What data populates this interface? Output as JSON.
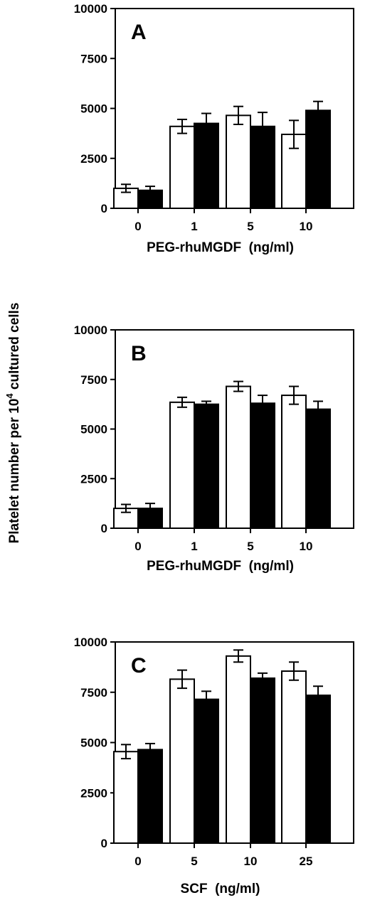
{
  "ylabel": "Platelet number per 10",
  "ylabel_sup": "4",
  "ylabel_tail": " cultured cells",
  "colors": {
    "open_bar": "#ffffff",
    "filled_bar": "#000000",
    "axis": "#000000"
  },
  "chart_data": [
    {
      "type": "bar",
      "panel": "A",
      "categories": [
        "0",
        "1",
        "5",
        "10"
      ],
      "xlabel": "PEG-rhuMGDF  (ng/ml)",
      "ylim": [
        0,
        10000
      ],
      "yticks": [
        "0",
        "2500",
        "5000",
        "7500",
        "10000"
      ],
      "series": [
        {
          "values": [
            1000,
            4100,
            4650,
            3700
          ],
          "errors": [
            200,
            350,
            450,
            700
          ],
          "style": "open"
        },
        {
          "values": [
            900,
            4250,
            4100,
            4900
          ],
          "errors": [
            200,
            500,
            700,
            450
          ],
          "style": "filled"
        }
      ]
    },
    {
      "type": "bar",
      "panel": "B",
      "categories": [
        "0",
        "1",
        "5",
        "10"
      ],
      "xlabel": "PEG-rhuMGDF  (ng/ml)",
      "ylim": [
        0,
        10000
      ],
      "yticks": [
        "0",
        "2500",
        "5000",
        "7500",
        "10000"
      ],
      "series": [
        {
          "values": [
            1000,
            6350,
            7150,
            6700
          ],
          "errors": [
            200,
            250,
            250,
            450
          ],
          "style": "open"
        },
        {
          "values": [
            1000,
            6250,
            6300,
            6000
          ],
          "errors": [
            250,
            150,
            400,
            400
          ],
          "style": "filled"
        }
      ]
    },
    {
      "type": "bar",
      "panel": "C",
      "categories": [
        "0",
        "5",
        "10",
        "25"
      ],
      "xlabel": "SCF  (ng/ml)",
      "ylim": [
        0,
        10000
      ],
      "yticks": [
        "0",
        "2500",
        "5000",
        "7500",
        "10000"
      ],
      "series": [
        {
          "values": [
            4550,
            8150,
            9300,
            8550
          ],
          "errors": [
            350,
            450,
            300,
            450
          ],
          "style": "open"
        },
        {
          "values": [
            4650,
            7150,
            8200,
            7350
          ],
          "errors": [
            300,
            400,
            250,
            450
          ],
          "style": "filled"
        }
      ]
    }
  ]
}
